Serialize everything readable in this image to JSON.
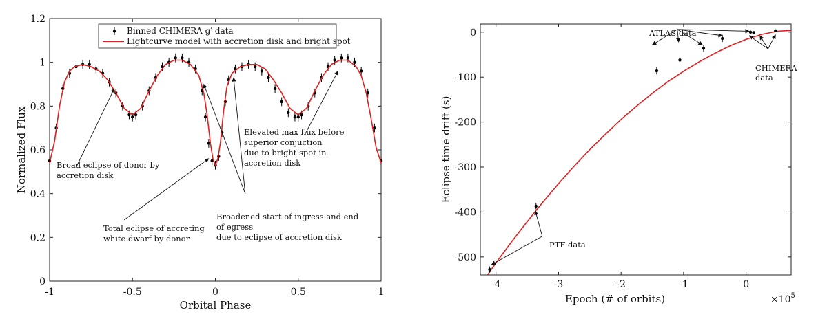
{
  "chart_data": [
    {
      "type": "scatter",
      "xlabel": "Orbital Phase",
      "ylabel": "Normalized Flux",
      "xlim": [
        -1,
        1
      ],
      "ylim": [
        0,
        1.2
      ],
      "xticks": [
        "-1",
        "-0.5",
        "0",
        "0.5",
        "1"
      ],
      "yticks": [
        "0",
        "0.2",
        "0.4",
        "0.6",
        "0.8",
        "1",
        "1.2"
      ],
      "grid": false,
      "legend": {
        "placement": "top-center",
        "entries": [
          {
            "label": "Binned CHIMERA g′ data",
            "marker": "errorbar-dot",
            "color": "#000000"
          },
          {
            "label": "Lightcurve model with accretion disk and bright spot",
            "marker": "line",
            "color": "#e02020"
          }
        ]
      },
      "series": [
        {
          "name": "Binned CHIMERA g′ data",
          "kind": "points-with-errorbars",
          "x": [
            -1.0,
            -0.96,
            -0.92,
            -0.88,
            -0.84,
            -0.8,
            -0.76,
            -0.72,
            -0.68,
            -0.64,
            -0.6,
            -0.56,
            -0.52,
            -0.5,
            -0.48,
            -0.44,
            -0.4,
            -0.36,
            -0.32,
            -0.28,
            -0.24,
            -0.2,
            -0.16,
            -0.12,
            -0.08,
            -0.06,
            -0.04,
            -0.02,
            0.0,
            0.02,
            0.04,
            0.06,
            0.08,
            0.12,
            0.16,
            0.2,
            0.24,
            0.28,
            0.32,
            0.36,
            0.4,
            0.44,
            0.48,
            0.5,
            0.52,
            0.56,
            0.6,
            0.64,
            0.68,
            0.72,
            0.76,
            0.8,
            0.84,
            0.88,
            0.92,
            0.96,
            1.0
          ],
          "y": [
            0.55,
            0.7,
            0.88,
            0.95,
            0.98,
            0.99,
            0.99,
            0.97,
            0.95,
            0.91,
            0.86,
            0.8,
            0.76,
            0.75,
            0.76,
            0.8,
            0.87,
            0.93,
            0.98,
            1.0,
            1.02,
            1.02,
            1.0,
            0.97,
            0.87,
            0.75,
            0.63,
            0.55,
            0.53,
            0.57,
            0.68,
            0.82,
            0.92,
            0.97,
            0.98,
            0.99,
            0.98,
            0.96,
            0.93,
            0.88,
            0.82,
            0.77,
            0.75,
            0.75,
            0.76,
            0.8,
            0.86,
            0.93,
            0.98,
            1.01,
            1.02,
            1.02,
            1.0,
            0.96,
            0.86,
            0.7,
            0.55
          ],
          "yerr": 0.02
        },
        {
          "name": "Lightcurve model with accretion disk and bright spot",
          "kind": "line",
          "x": [
            -1.0,
            -0.97,
            -0.94,
            -0.91,
            -0.88,
            -0.85,
            -0.8,
            -0.75,
            -0.7,
            -0.65,
            -0.6,
            -0.55,
            -0.5,
            -0.45,
            -0.4,
            -0.35,
            -0.3,
            -0.25,
            -0.2,
            -0.15,
            -0.1,
            -0.07,
            -0.05,
            -0.03,
            -0.015,
            0.0,
            0.015,
            0.03,
            0.05,
            0.07,
            0.1,
            0.15,
            0.2,
            0.25,
            0.3,
            0.35,
            0.4,
            0.45,
            0.5,
            0.55,
            0.6,
            0.65,
            0.7,
            0.75,
            0.8,
            0.85,
            0.88,
            0.91,
            0.94,
            0.97,
            1.0
          ],
          "y": [
            0.54,
            0.64,
            0.8,
            0.91,
            0.96,
            0.98,
            0.99,
            0.98,
            0.96,
            0.92,
            0.86,
            0.79,
            0.76,
            0.79,
            0.87,
            0.94,
            0.99,
            1.01,
            1.01,
            0.99,
            0.94,
            0.86,
            0.76,
            0.63,
            0.56,
            0.53,
            0.56,
            0.63,
            0.78,
            0.89,
            0.95,
            0.98,
            0.99,
            0.99,
            0.97,
            0.92,
            0.86,
            0.79,
            0.76,
            0.79,
            0.87,
            0.94,
            0.99,
            1.01,
            1.01,
            0.98,
            0.94,
            0.86,
            0.74,
            0.61,
            0.54
          ],
          "color": "#e02020"
        }
      ],
      "annotations": [
        {
          "lines": [
            "Broad eclipse of donor by",
            "accretion disk"
          ],
          "pointers": [
            {
              "from": [
                -0.84,
                0.52
              ],
              "to": [
                -0.61,
                0.88
              ]
            }
          ]
        },
        {
          "lines": [
            "Total eclipse of accreting",
            "white dwarf by donor"
          ],
          "pointers": [
            {
              "from": [
                -0.55,
                0.28
              ],
              "to": [
                -0.04,
                0.56
              ]
            }
          ]
        },
        {
          "lines": [
            "Broadened start of ingress and end",
            "of egress",
            "due to eclipse of accretion disk"
          ],
          "pointers": [
            {
              "from": [
                0.18,
                0.4
              ],
              "to": [
                -0.07,
                0.9
              ]
            },
            {
              "from": [
                0.18,
                0.4
              ],
              "to": [
                0.11,
                0.93
              ]
            }
          ]
        },
        {
          "lines": [
            "Elevated max flux before",
            "superior conjuction",
            "due to bright spot in",
            "accretion disk"
          ],
          "pointers": [
            {
              "from": [
                0.54,
                0.67
              ],
              "to": [
                0.74,
                0.96
              ]
            }
          ]
        }
      ]
    },
    {
      "type": "scatter",
      "xlabel": "Epoch (# of orbits)",
      "ylabel": "Eclipse time drift  (s)",
      "x_multiplier": "×10",
      "x_multiplier_exp": "5",
      "xlim": [
        -4.25,
        0.72
      ],
      "ylim": [
        -540,
        18
      ],
      "xticks": [
        "-4",
        "-3",
        "-2",
        "-1",
        "0"
      ],
      "xtick_values": [
        -4,
        -3,
        -2,
        -1,
        0
      ],
      "yticks": [
        "0",
        "-100",
        "-200",
        "-300",
        "-400",
        "-500"
      ],
      "ytick_values": [
        0,
        -100,
        -200,
        -300,
        -400,
        -500
      ],
      "grid": false,
      "series": [
        {
          "name": "PTF data",
          "kind": "points-with-errorbars",
          "x": [
            -4.1,
            -3.36
          ],
          "y": [
            -528,
            -387
          ],
          "yerr": 7
        },
        {
          "name": "ATLAS data",
          "kind": "points-with-errorbars",
          "x": [
            -1.43,
            -1.06,
            -0.68,
            -0.38
          ],
          "y": [
            -86,
            -62,
            -36,
            -14
          ],
          "yerr": 8
        },
        {
          "name": "CHIMERA data",
          "kind": "points-with-errorbars",
          "x": [
            0.07,
            0.12,
            0.47
          ],
          "y": [
            0,
            -1,
            3
          ],
          "yerr": 2
        },
        {
          "name": "model",
          "kind": "line",
          "x": [
            -4.25,
            -4.0,
            -3.75,
            -3.5,
            -3.25,
            -3.0,
            -2.75,
            -2.5,
            -2.25,
            -2.0,
            -1.75,
            -1.5,
            -1.25,
            -1.0,
            -0.75,
            -0.5,
            -0.25,
            0.0,
            0.25,
            0.5,
            0.72
          ],
          "y": [
            -563,
            -513,
            -466,
            -421,
            -378,
            -337,
            -298,
            -261,
            -227,
            -194,
            -164,
            -136,
            -110,
            -87,
            -66,
            -47,
            -30,
            -16,
            -5,
            2,
            4
          ],
          "color": "#e02020"
        }
      ],
      "annotations": [
        {
          "lines": [
            "ATLAS data"
          ],
          "pointers": [
            {
              "from": [
                -1.1,
                6
              ],
              "to": [
                -1.5,
                -28
              ]
            },
            {
              "from": [
                -1.1,
                6
              ],
              "to": [
                -1.08,
                -22
              ]
            },
            {
              "from": [
                -1.1,
                6
              ],
              "to": [
                -0.7,
                -28
              ]
            },
            {
              "from": [
                -1.1,
                6
              ],
              "to": [
                -0.38,
                -8
              ]
            },
            {
              "from": [
                -1.1,
                6
              ],
              "to": [
                0.05,
                2
              ]
            }
          ]
        },
        {
          "lines": [
            "CHIMERA",
            "data"
          ],
          "pointers": [
            {
              "from": [
                0.35,
                -37
              ],
              "to": [
                0.05,
                -8
              ]
            },
            {
              "from": [
                0.35,
                -37
              ],
              "to": [
                0.22,
                -8
              ]
            },
            {
              "from": [
                0.35,
                -37
              ],
              "to": [
                0.47,
                -6
              ]
            }
          ]
        },
        {
          "lines": [
            "PTF data"
          ],
          "pointers": [
            {
              "from": [
                -3.26,
                -454
              ],
              "to": [
                -3.37,
                -398
              ]
            },
            {
              "from": [
                -3.26,
                -454
              ],
              "to": [
                -4.07,
                -517
              ]
            }
          ]
        }
      ]
    }
  ]
}
